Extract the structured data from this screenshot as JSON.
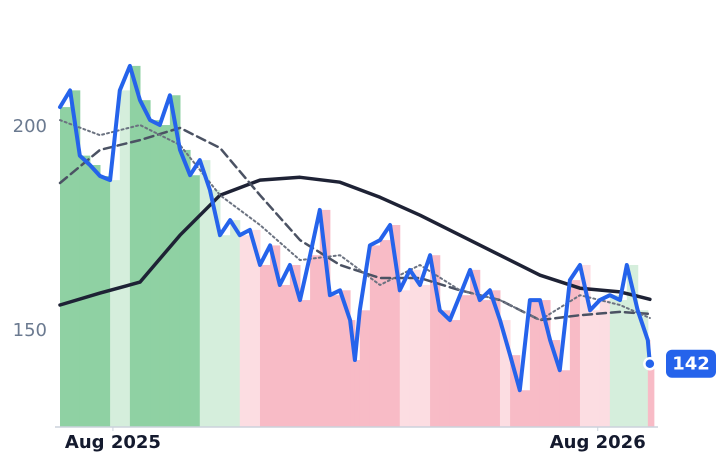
{
  "chart_data": {
    "type": "line",
    "xlim": [
      -1.31,
      13.4
    ],
    "xticks": [
      {
        "value": 0,
        "label": "Aug 2025"
      },
      {
        "value": 12,
        "label": "Aug 2026"
      }
    ],
    "ylim": [
      126,
      226
    ],
    "yticks": [
      150,
      200
    ],
    "regimes": {
      "x": [
        -1.31,
        -0.12,
        0.42,
        2.1,
        3.07,
        3.76,
        7.0,
        7.9,
        9.63,
        9.88,
        11.51,
        12.38,
        13.17,
        13.4
      ],
      "colors": [
        "#8fd1a3",
        "#d5eedc",
        "#8fd1a3",
        "#d5eedc",
        "#fcdde2",
        "#f8bbc6",
        "#fcdde2",
        "#f8bbc6",
        "#fcdde2",
        "#f8bbc6",
        "#fcdde2",
        "#d5eedc",
        "#f8bbc6"
      ]
    },
    "series": [
      {
        "style": "solid",
        "color": "#2563eb",
        "area": true,
        "last_label": true,
        "x": [
          -1.31,
          -1.06,
          -0.82,
          -0.57,
          -0.32,
          -0.07,
          0.17,
          0.42,
          0.67,
          0.92,
          1.16,
          1.41,
          1.66,
          1.91,
          2.15,
          2.4,
          2.65,
          2.9,
          3.14,
          3.39,
          3.64,
          3.89,
          4.13,
          4.38,
          4.63,
          4.88,
          5.12,
          5.37,
          5.62,
          5.87,
          5.99,
          6.11,
          6.36,
          6.61,
          6.86,
          7.1,
          7.35,
          7.6,
          7.85,
          8.09,
          8.34,
          8.59,
          8.84,
          9.08,
          9.33,
          9.58,
          9.83,
          10.07,
          10.32,
          10.57,
          10.82,
          11.06,
          11.31,
          11.56,
          11.81,
          12.05,
          12.3,
          12.55,
          12.72,
          12.99,
          13.24,
          13.29
        ],
        "values": [
          204.9,
          209,
          193,
          190.7,
          188,
          187,
          209,
          215,
          206.6,
          201.7,
          200.5,
          207.8,
          194.4,
          188.2,
          191.9,
          184.6,
          173.5,
          177.2,
          173.5,
          174.8,
          166.2,
          171,
          161.3,
          166.2,
          157.6,
          168.6,
          179.7,
          158.8,
          160,
          152.7,
          142.9,
          155.1,
          171,
          172.3,
          176,
          160,
          165,
          161.3,
          168.6,
          155.1,
          152.7,
          158.8,
          165,
          157.6,
          160,
          152.7,
          144.1,
          135.5,
          157.6,
          157.6,
          147.8,
          140.4,
          162.5,
          166.2,
          155.1,
          157.6,
          158.8,
          157.6,
          166.2,
          155.1,
          147.8,
          142
        ]
      },
      {
        "style": "solid",
        "color": "#1e2235",
        "x": [
          -1.31,
          -0.32,
          0.67,
          1.66,
          2.65,
          3.64,
          4.63,
          5.62,
          6.61,
          7.6,
          8.59,
          9.58,
          10.57,
          11.56,
          12.55,
          13.29
        ],
        "values": [
          156.4,
          159.3,
          162,
          173.5,
          183.3,
          187,
          187.7,
          186.5,
          182.8,
          178.4,
          173.5,
          168.6,
          163.7,
          160.5,
          159.6,
          157.8
        ]
      },
      {
        "style": "dashed",
        "color": "#4b5263",
        "x": [
          -1.31,
          -0.32,
          0.67,
          1.66,
          2.65,
          3.64,
          4.63,
          5.62,
          6.61,
          7.6,
          8.59,
          9.58,
          10.57,
          11.56,
          12.55,
          13.29
        ],
        "values": [
          186.3,
          194.4,
          196.8,
          199.8,
          194.9,
          183.3,
          172.3,
          166.2,
          163,
          163,
          160,
          157.6,
          152.7,
          153.9,
          154.7,
          154.2
        ]
      },
      {
        "style": "dotted",
        "color": "#6b7280",
        "x": [
          -1.31,
          -0.32,
          0.67,
          1.66,
          2.65,
          3.64,
          4.63,
          5.62,
          6.61,
          7.6,
          8.59,
          9.58,
          10.57,
          11.56,
          12.55,
          13.29
        ],
        "values": [
          201.7,
          198,
          200.5,
          195.6,
          183.3,
          176,
          167.4,
          168.6,
          161.3,
          166.2,
          160,
          157.6,
          152.7,
          158.8,
          156.4,
          153.2
        ]
      }
    ]
  }
}
